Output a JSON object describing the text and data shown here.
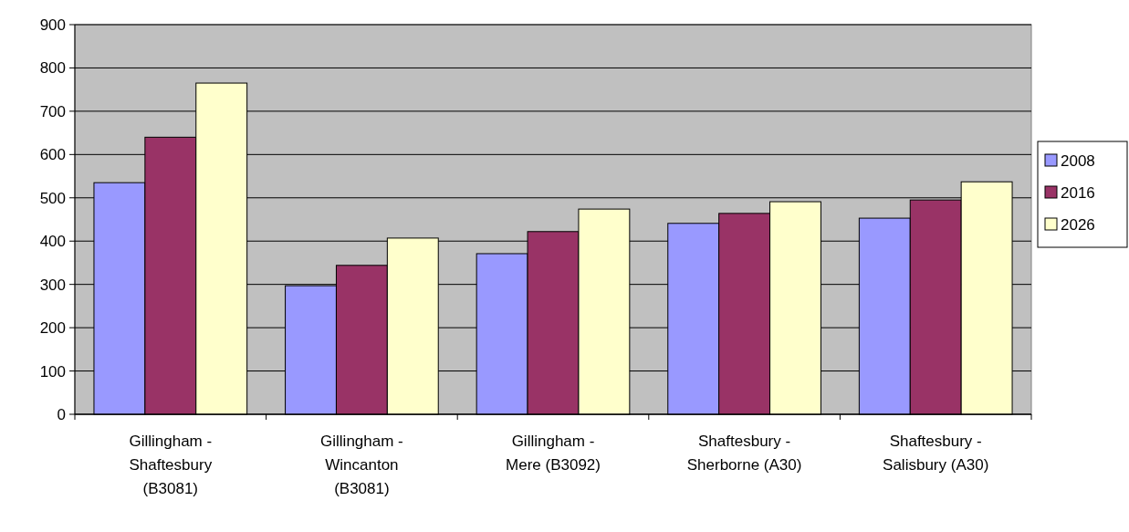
{
  "chart_data": {
    "type": "bar",
    "categories": [
      "Gillingham - Shaftesbury (B3081)",
      "Gillingham - Wincanton (B3081)",
      "Gillingham - Mere (B3092)",
      "Shaftesbury - Sherborne (A30)",
      "Shaftesbury - Salisbury (A30)"
    ],
    "series": [
      {
        "name": "2008",
        "color": "#9999ff",
        "values": [
          535,
          297,
          371,
          441,
          453
        ]
      },
      {
        "name": "2016",
        "color": "#993366",
        "values": [
          640,
          344,
          422,
          464,
          495
        ]
      },
      {
        "name": "2026",
        "color": "#ffffcc",
        "values": [
          765,
          407,
          474,
          491,
          537
        ]
      }
    ],
    "ylim": [
      0,
      900
    ],
    "yticks": [
      0,
      100,
      200,
      300,
      400,
      500,
      600,
      700,
      800,
      900
    ],
    "grid": "y",
    "legend": "right"
  }
}
